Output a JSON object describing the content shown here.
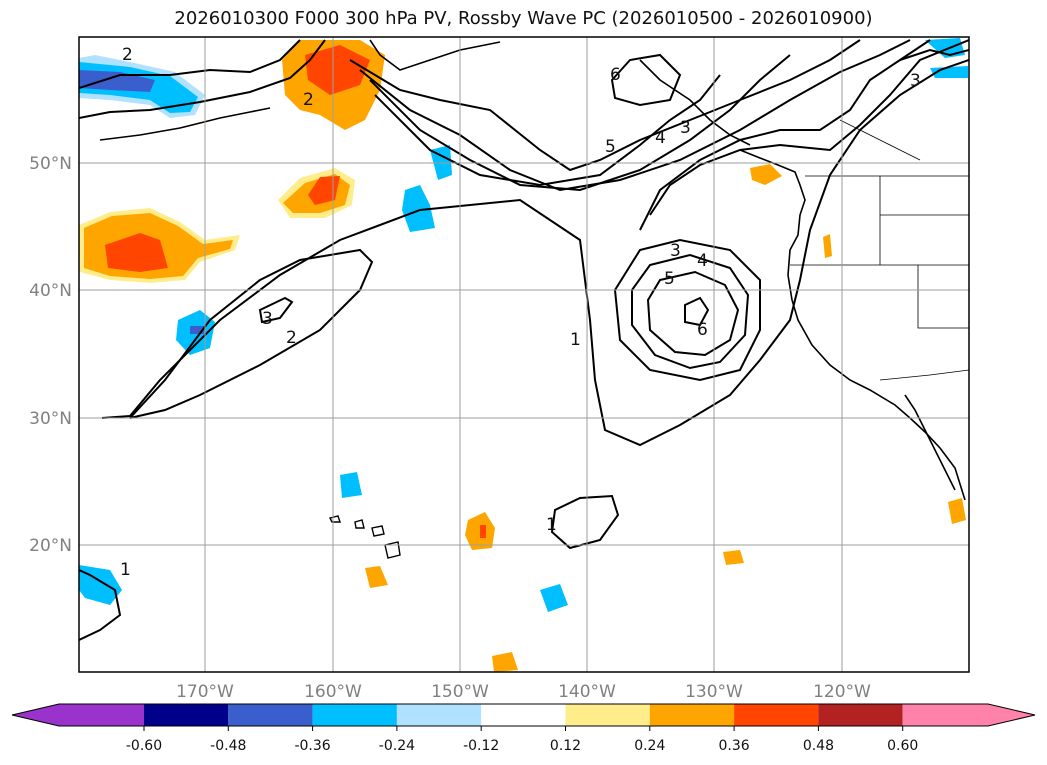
{
  "title": "2026010300 F000 300 hPa PV, Rossby Wave PC (2026010500 - 2026010900)",
  "map": {
    "latitude_labels": [
      "50°N",
      "40°N",
      "30°N",
      "20°N"
    ],
    "longitude_labels": [
      "170°W",
      "160°W",
      "150°W",
      "140°W",
      "130°W",
      "120°W"
    ],
    "contour_labels": [
      "2",
      "6",
      "5",
      "4",
      "3",
      "3",
      "2",
      "3",
      "4",
      "5",
      "6",
      "1",
      "1",
      "1",
      "2",
      "3"
    ]
  },
  "colorbar": {
    "ticks": [
      "-0.60",
      "-0.48",
      "-0.36",
      "-0.24",
      "-0.12",
      "0.12",
      "0.24",
      "0.36",
      "0.48",
      "0.60"
    ],
    "colors": {
      "under": "#9933cc",
      "bins": [
        "#9933cc",
        "#00008b",
        "#3a5fcd",
        "#00bfff",
        "#b0e2ff",
        "#ffffff",
        "#ffec8b",
        "#ffa500",
        "#ff4500",
        "#b22222",
        "#ff82ab"
      ],
      "over": "#ff82ab"
    }
  }
}
